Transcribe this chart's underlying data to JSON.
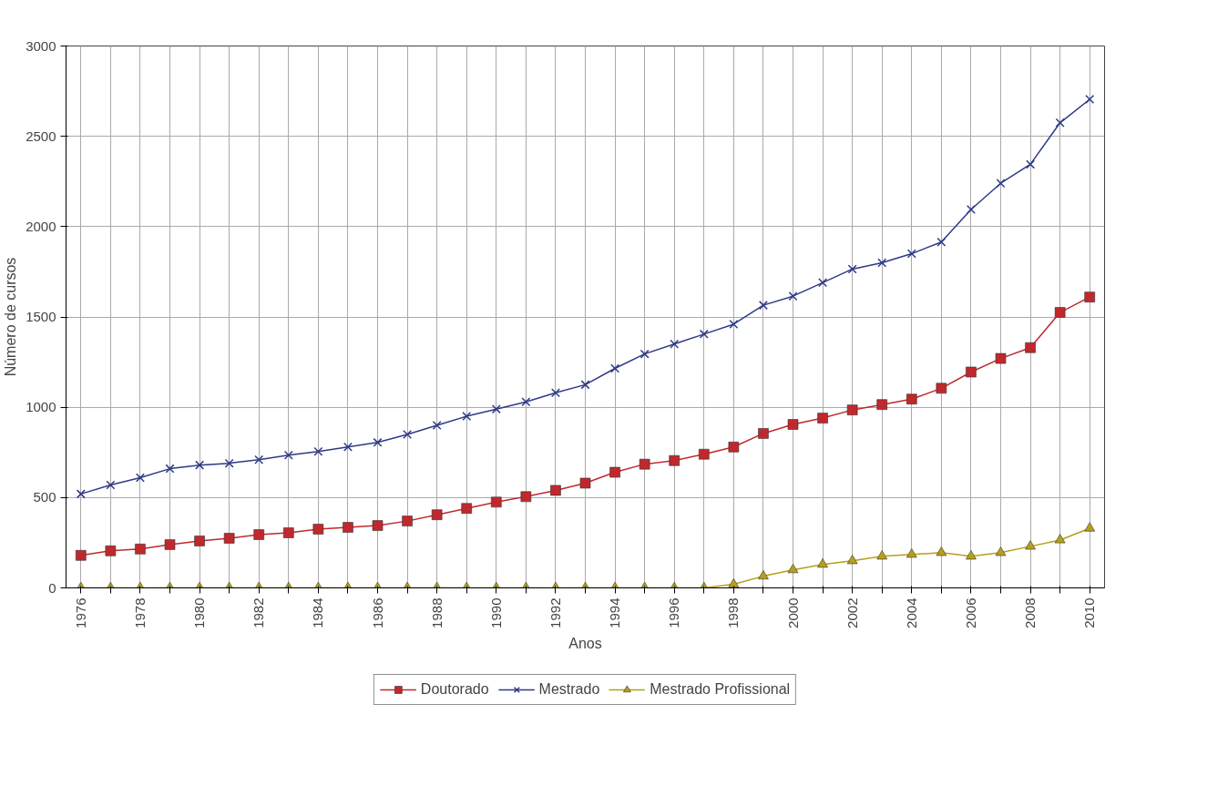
{
  "chart_data": {
    "type": "line",
    "xlabel": "Anos",
    "ylabel": "Número de cursos",
    "categories": [
      "1976",
      null,
      "1978",
      null,
      "1980",
      null,
      "1982",
      null,
      "1984",
      null,
      "1986",
      null,
      "1988",
      null,
      "1990",
      null,
      "1992",
      null,
      "1994",
      null,
      "1996",
      null,
      "1998",
      null,
      "2000",
      null,
      "2002",
      null,
      "2004",
      null,
      "2006",
      null,
      "2008",
      null,
      "2010"
    ],
    "series": [
      {
        "name": "Doutorado",
        "color": "#c0282d",
        "marker": "square",
        "values": [
          180,
          205,
          215,
          240,
          260,
          275,
          295,
          305,
          325,
          335,
          345,
          370,
          405,
          440,
          475,
          505,
          540,
          580,
          640,
          685,
          705,
          740,
          780,
          855,
          905,
          940,
          985,
          1015,
          1045,
          1105,
          1195,
          1270,
          1330,
          1525,
          1610
        ]
      },
      {
        "name": "Mestrado",
        "color": "#2e3a87",
        "marker": "cross",
        "values": [
          520,
          570,
          610,
          660,
          680,
          690,
          710,
          735,
          755,
          780,
          805,
          850,
          900,
          950,
          990,
          1030,
          1080,
          1125,
          1215,
          1295,
          1350,
          1405,
          1460,
          1565,
          1615,
          1690,
          1765,
          1800,
          1850,
          1915,
          2095,
          2240,
          2345,
          2575,
          2705
        ]
      },
      {
        "name": "Mestrado Profissional",
        "color": "#b5a019",
        "marker": "triangle",
        "values": [
          0,
          0,
          0,
          0,
          0,
          0,
          0,
          0,
          0,
          0,
          0,
          0,
          0,
          0,
          0,
          0,
          0,
          0,
          0,
          0,
          0,
          0,
          20,
          65,
          100,
          130,
          150,
          175,
          185,
          195,
          175,
          195,
          230,
          265,
          330
        ]
      }
    ],
    "ylim": [
      0,
      3000
    ],
    "yticks": [
      0,
      500,
      1000,
      1500,
      2000,
      2500,
      3000
    ],
    "grid": true,
    "legend": "bottom",
    "line_style": "solid"
  }
}
